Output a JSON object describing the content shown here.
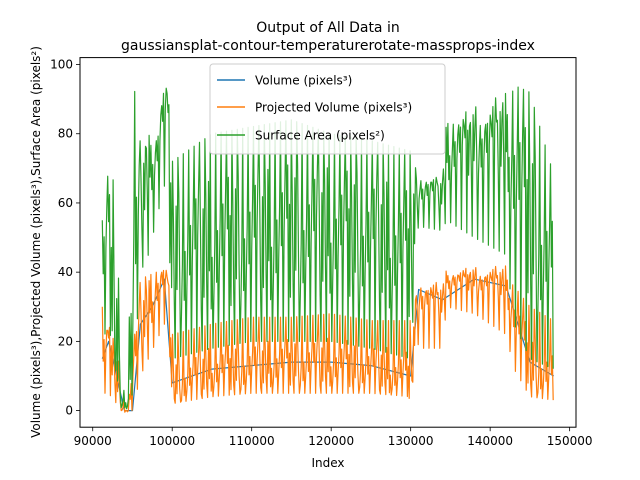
{
  "chart_data": {
    "type": "line",
    "title_line1": "Output of All Data in",
    "title_line2": "gaussiansplat-contour-temperaturerotate-massprops-index",
    "xlabel": "Index",
    "ylabel": "Volume (pixels³),Projected Volume (pixels³),Surface Area (pixels²)",
    "xlim": [
      88400,
      150800
    ],
    "ylim": [
      -4.8,
      102
    ],
    "xticks": [
      90000,
      100000,
      110000,
      120000,
      130000,
      140000,
      150000
    ],
    "xtick_labels": [
      "90000",
      "100000",
      "110000",
      "120000",
      "130000",
      "140000",
      "150000"
    ],
    "yticks": [
      0,
      20,
      40,
      60,
      80,
      100
    ],
    "ytick_labels": [
      "0",
      "20",
      "40",
      "60",
      "80",
      "100"
    ],
    "grid": false,
    "legend_position": "top-center",
    "series": [
      {
        "name": "Volume (pixels³)",
        "color": "#1f77b4",
        "x": [
          91200,
          92000,
          93000,
          94000,
          95000,
          96000,
          97500,
          99000,
          100000,
          105000,
          110000,
          115000,
          120000,
          125000,
          130000,
          131000,
          134000,
          138000,
          142000,
          145000,
          148000
        ],
        "y": [
          15,
          20,
          10,
          0,
          0,
          25,
          30,
          38,
          8,
          12,
          13,
          14,
          14,
          13,
          10,
          35,
          32,
          38,
          36,
          14,
          10
        ]
      },
      {
        "name": "Projected Volume (pixels³)",
        "color": "#ff7f0e",
        "x": [
          91200,
          92000,
          93000,
          93500,
          94000,
          94500,
          95000,
          96000,
          97000,
          98000,
          99000,
          99500,
          100000,
          105000,
          110000,
          115000,
          120000,
          125000,
          130000,
          131000,
          131500,
          134000,
          134500,
          138000,
          142000,
          143000,
          145000,
          148000
        ],
        "y": [
          15,
          20,
          10,
          3,
          0,
          0,
          10,
          25,
          30,
          35,
          38,
          36,
          8,
          12,
          13,
          14,
          14,
          13,
          10,
          35,
          33,
          32,
          38,
          38,
          37,
          28,
          14,
          10
        ],
        "y_low": [
          5,
          5,
          2,
          0,
          0,
          0,
          0,
          10,
          15,
          20,
          25,
          24,
          2,
          4,
          5,
          5,
          5,
          5,
          4,
          20,
          18,
          18,
          30,
          28,
          22,
          12,
          4,
          3
        ],
        "y_high": [
          30,
          22,
          20,
          8,
          2,
          2,
          16,
          38,
          39,
          40,
          40,
          38,
          22,
          25,
          27,
          27,
          28,
          26,
          26,
          36,
          35,
          33,
          39,
          39,
          38,
          36,
          30,
          26
        ]
      },
      {
        "name": "Surface Area (pixels²)",
        "color": "#2ca02c",
        "x": [
          91200,
          92000,
          93000,
          93500,
          94000,
          94500,
          95000,
          96000,
          97000,
          98000,
          99000,
          99500,
          100000,
          105000,
          110000,
          115000,
          120000,
          125000,
          130000,
          131000,
          131500,
          134000,
          134500,
          138000,
          142000,
          143000,
          145000,
          148000
        ],
        "y": [
          40,
          52,
          20,
          5,
          2,
          3,
          30,
          62,
          70,
          75,
          88,
          84,
          45,
          48,
          50,
          52,
          52,
          50,
          45,
          65,
          64,
          63,
          75,
          78,
          80,
          70,
          55,
          40
        ],
        "y_low": [
          20,
          25,
          10,
          1,
          0,
          1,
          5,
          40,
          45,
          55,
          65,
          60,
          15,
          18,
          20,
          20,
          20,
          18,
          15,
          55,
          53,
          52,
          55,
          50,
          45,
          25,
          15,
          12
        ],
        "y_high": [
          55,
          70,
          64,
          10,
          5,
          10,
          98,
          77,
          76,
          78,
          93,
          91,
          72,
          80,
          82,
          84,
          80,
          78,
          75,
          67,
          66,
          66,
          83,
          82,
          84,
          94,
          92,
          68
        ]
      }
    ]
  }
}
